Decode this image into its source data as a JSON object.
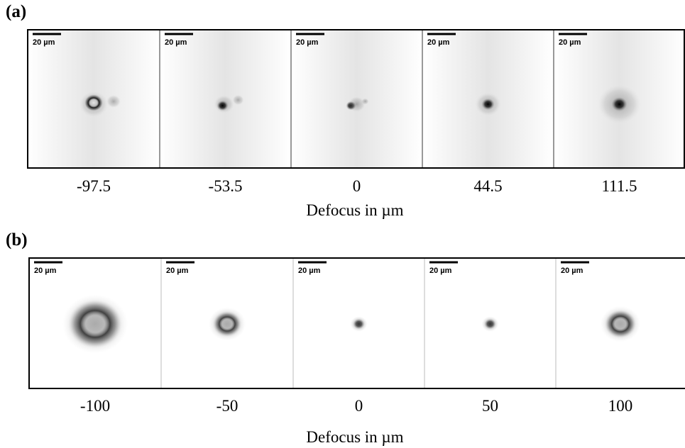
{
  "panels": [
    {
      "label": "(a)",
      "axis_label": "Defocus in µm",
      "frames": [
        {
          "scale_bar": "20 µm",
          "defocus": "-97.5"
        },
        {
          "scale_bar": "20 µm",
          "defocus": "-53.5"
        },
        {
          "scale_bar": "20 µm",
          "defocus": "0"
        },
        {
          "scale_bar": "20 µm",
          "defocus": "44.5"
        },
        {
          "scale_bar": "20 µm",
          "defocus": "111.5"
        }
      ]
    },
    {
      "label": "(b)",
      "axis_label": "Defocus in µm",
      "frames": [
        {
          "scale_bar": "20 µm",
          "defocus": "-100"
        },
        {
          "scale_bar": "20 µm",
          "defocus": "-50"
        },
        {
          "scale_bar": "20 µm",
          "defocus": "0"
        },
        {
          "scale_bar": "20 µm",
          "defocus": "50"
        },
        {
          "scale_bar": "20 µm",
          "defocus": "100"
        }
      ]
    }
  ]
}
